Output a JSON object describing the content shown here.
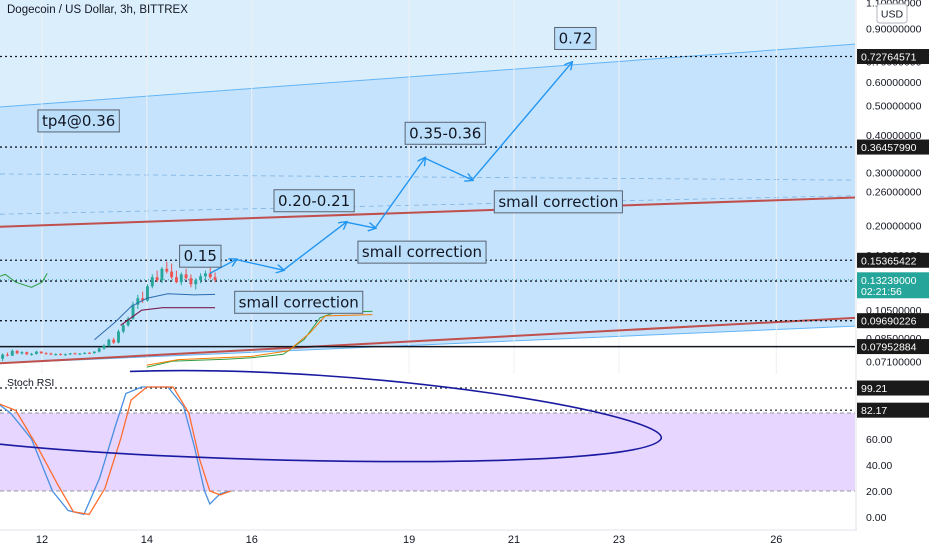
{
  "header": {
    "title": "Dogecoin / US Dollar, 3h, BITTREX"
  },
  "currency_badge": "USD",
  "colors": {
    "channel_fill": "#bbdefb",
    "channel_edge": "#64b5f6",
    "trendline": "#c0504d",
    "annotation_arrow": "#2196f3",
    "candle_up": "#26a69a",
    "candle_down": "#ef5350",
    "price_tag_bg": "#1a1a1a",
    "current_price_tag": "#26a69a",
    "stoch_band": "#e7d6ff",
    "stoch_k": "#4a90e2",
    "stoch_d": "#ff6d2d",
    "ellipse": "#1a1aa0"
  },
  "chart_data": [
    {
      "type": "candlestick",
      "title": "Dogecoin / US Dollar, 3h, BITTREX",
      "y_scale": "log",
      "y_tick_labels": [
        "1.10000000",
        "0.90000000",
        "0.70000000",
        "0.60000000",
        "0.50000000",
        "0.40000000",
        "0.30000000",
        "0.26000000",
        "0.20000000",
        "0.16000000",
        "0.10500000",
        "0.08500000",
        "0.07100000"
      ],
      "x_tick_labels": [
        "12",
        "14",
        "16",
        "19",
        "21",
        "23",
        "26"
      ],
      "x_tick_days": [
        12,
        14,
        16,
        19,
        21,
        23,
        26
      ],
      "x_range_days": [
        11.2,
        27.5
      ],
      "y_range": [
        0.0655,
        1.12
      ],
      "current_price": "0.13239000",
      "countdown": "02:21:56",
      "price_levels": [
        "0.72764571",
        "0.36457990",
        "0.15365422",
        "0.13113858",
        "0.09690226",
        "0.07952884"
      ],
      "candles_ohlc": [
        [
          0.0725,
          0.0755,
          0.0712,
          0.0748
        ],
        [
          0.0748,
          0.076,
          0.0738,
          0.0742
        ],
        [
          0.0742,
          0.0778,
          0.074,
          0.077
        ],
        [
          0.077,
          0.0775,
          0.075,
          0.0755
        ],
        [
          0.0755,
          0.0768,
          0.0748,
          0.0762
        ],
        [
          0.0762,
          0.0765,
          0.0745,
          0.075
        ],
        [
          0.075,
          0.0758,
          0.0742,
          0.0752
        ],
        [
          0.0752,
          0.077,
          0.0748,
          0.0765
        ],
        [
          0.0765,
          0.0768,
          0.0752,
          0.0756
        ],
        [
          0.0756,
          0.0762,
          0.0748,
          0.0754
        ],
        [
          0.0754,
          0.076,
          0.0745,
          0.0749
        ],
        [
          0.0749,
          0.0755,
          0.0742,
          0.0751
        ],
        [
          0.0751,
          0.0756,
          0.0744,
          0.0748
        ],
        [
          0.0748,
          0.0754,
          0.0741,
          0.075
        ],
        [
          0.075,
          0.0758,
          0.0746,
          0.0755
        ],
        [
          0.0755,
          0.076,
          0.0748,
          0.0752
        ],
        [
          0.0752,
          0.0757,
          0.0745,
          0.0754
        ],
        [
          0.0754,
          0.0762,
          0.075,
          0.0758
        ],
        [
          0.0758,
          0.0763,
          0.0752,
          0.0756
        ],
        [
          0.0756,
          0.0768,
          0.0754,
          0.0765
        ],
        [
          0.0765,
          0.079,
          0.076,
          0.0784
        ],
        [
          0.0784,
          0.081,
          0.0776,
          0.08
        ],
        [
          0.08,
          0.0845,
          0.0795,
          0.0838
        ],
        [
          0.0838,
          0.085,
          0.0812,
          0.082
        ],
        [
          0.082,
          0.0905,
          0.0815,
          0.0892
        ],
        [
          0.0892,
          0.095,
          0.088,
          0.0935
        ],
        [
          0.0935,
          0.1,
          0.0925,
          0.0985
        ],
        [
          0.0985,
          0.112,
          0.0975,
          0.1095
        ],
        [
          0.1095,
          0.118,
          0.106,
          0.115
        ],
        [
          0.115,
          0.121,
          0.111,
          0.113
        ],
        [
          0.113,
          0.128,
          0.112,
          0.126
        ],
        [
          0.126,
          0.138,
          0.124,
          0.135
        ],
        [
          0.135,
          0.142,
          0.13,
          0.132
        ],
        [
          0.132,
          0.146,
          0.129,
          0.144
        ],
        [
          0.144,
          0.152,
          0.139,
          0.141
        ],
        [
          0.141,
          0.15,
          0.133,
          0.135
        ],
        [
          0.135,
          0.142,
          0.129,
          0.13
        ],
        [
          0.13,
          0.14,
          0.127,
          0.138
        ],
        [
          0.138,
          0.144,
          0.132,
          0.134
        ],
        [
          0.134,
          0.138,
          0.125,
          0.128
        ],
        [
          0.128,
          0.134,
          0.123,
          0.132
        ],
        [
          0.132,
          0.139,
          0.129,
          0.136
        ],
        [
          0.136,
          0.142,
          0.132,
          0.139
        ],
        [
          0.139,
          0.145,
          0.133,
          0.135
        ],
        [
          0.135,
          0.14,
          0.13,
          0.1324
        ]
      ],
      "trendlines": [
        {
          "name": "channel-upper",
          "points": [
            [
              11.2,
              0.495
            ],
            [
              27.5,
              0.8
            ]
          ]
        },
        {
          "name": "channel-lower",
          "points": [
            [
              11.2,
              0.07
            ],
            [
              27.5,
              0.093
            ]
          ]
        },
        {
          "name": "resistance",
          "points": [
            [
              11.2,
              0.1985
            ],
            [
              27.5,
              0.248
            ]
          ]
        },
        {
          "name": "support",
          "points": [
            [
              11.2,
              0.07
            ],
            [
              27.5,
              0.099
            ]
          ]
        }
      ],
      "annotations": [
        {
          "text": "tp4@0.36",
          "day": 12.0,
          "price": 0.445
        },
        {
          "text": "0.72",
          "day": 21.85,
          "price": 0.835
        },
        {
          "text": "0.35-0.36",
          "day": 19.0,
          "price": 0.405
        },
        {
          "text": "0.20-0.21",
          "day": 16.5,
          "price": 0.242
        },
        {
          "text": "0.15",
          "day": 14.7,
          "price": 0.1585
        },
        {
          "text": "small correction",
          "day": 20.7,
          "price": 0.24
        },
        {
          "text": "small correction",
          "day": 18.1,
          "price": 0.1635
        },
        {
          "text": "small correction",
          "day": 15.75,
          "price": 0.1115
        }
      ],
      "projection_path": [
        [
          15.2,
          0.139
        ],
        [
          15.7,
          0.1545
        ],
        [
          16.6,
          0.1425
        ],
        [
          17.8,
          0.2055
        ],
        [
          18.35,
          0.1965
        ],
        [
          19.3,
          0.335
        ],
        [
          20.2,
          0.2835
        ],
        [
          22.1,
          0.695
        ]
      ]
    },
    {
      "type": "line",
      "title": "Stoch RSI",
      "y_tick_labels": [
        "100.00",
        "80.00",
        "60.00",
        "40.00",
        "20.00",
        "0.00"
      ],
      "y_range": [
        -10,
        110
      ],
      "band": [
        20,
        80
      ],
      "level_readouts": [
        "99.21",
        "82.17"
      ],
      "series": [
        {
          "values": [
            [
              11.0,
              92
            ],
            [
              11.4,
              80
            ],
            [
              11.8,
              60
            ],
            [
              12.0,
              40
            ],
            [
              12.2,
              20
            ],
            [
              12.5,
              5
            ],
            [
              12.8,
              2
            ],
            [
              13.1,
              30
            ],
            [
              13.4,
              70
            ],
            [
              13.6,
              95
            ],
            [
              13.9,
              100
            ],
            [
              14.4,
              100
            ],
            [
              14.7,
              85
            ],
            [
              14.9,
              55
            ],
            [
              15.1,
              20
            ],
            [
              15.2,
              10
            ],
            [
              15.4,
              18
            ],
            [
              15.6,
              20
            ]
          ]
        },
        {
          "values": [
            [
              11.0,
              90
            ],
            [
              11.5,
              82
            ],
            [
              11.9,
              55
            ],
            [
              12.3,
              25
            ],
            [
              12.6,
              4
            ],
            [
              12.9,
              2
            ],
            [
              13.2,
              22
            ],
            [
              13.5,
              60
            ],
            [
              13.7,
              90
            ],
            [
              14.0,
              100
            ],
            [
              14.5,
              100
            ],
            [
              14.8,
              80
            ],
            [
              15.0,
              45
            ],
            [
              15.2,
              20
            ],
            [
              15.4,
              17
            ],
            [
              15.6,
              20
            ]
          ]
        }
      ]
    }
  ]
}
